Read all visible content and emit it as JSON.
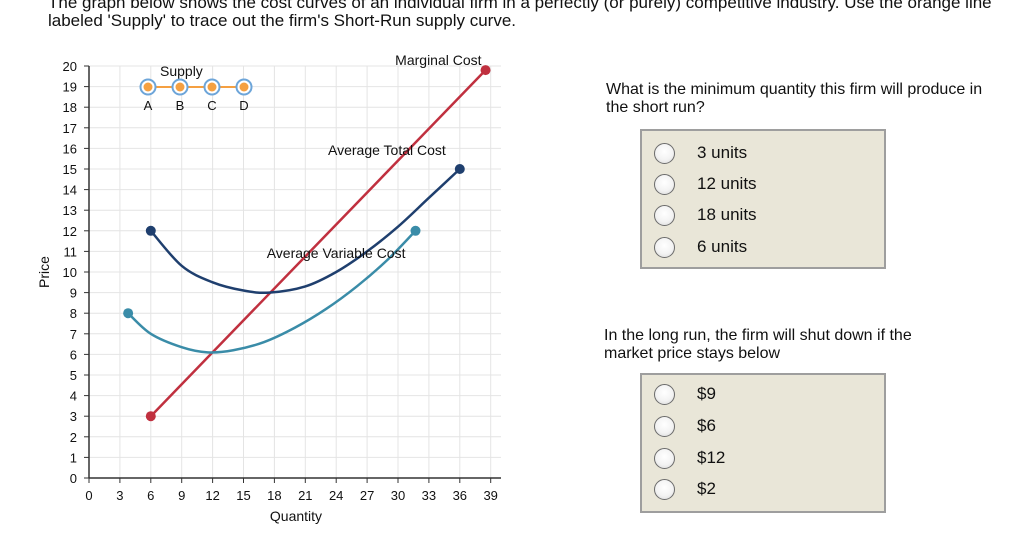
{
  "instructions": "The graph below shows the cost curves of an individual firm in a perfectly (or purely) competitive industry. Use the orange line labeled 'Supply' to trace out the firm's Short-Run supply curve.",
  "chart_data": {
    "type": "line",
    "xlabel": "Quantity",
    "ylabel": "Price",
    "xlim": [
      0,
      40
    ],
    "ylim": [
      0,
      20
    ],
    "x_ticks": [
      0,
      3,
      6,
      9,
      12,
      15,
      18,
      21,
      24,
      27,
      30,
      33,
      36,
      39
    ],
    "y_ticks": [
      0,
      1,
      2,
      3,
      4,
      5,
      6,
      7,
      8,
      9,
      10,
      11,
      12,
      13,
      14,
      15,
      16,
      17,
      18,
      19,
      20
    ],
    "grid": true,
    "series": [
      {
        "name": "Marginal Cost",
        "color": "#c0303f",
        "points": [
          [
            6,
            3
          ],
          [
            38.5,
            19.8
          ]
        ]
      },
      {
        "name": "Average Total Cost",
        "color": "#1f3f6e",
        "points": [
          [
            6,
            12
          ],
          [
            9,
            10.3
          ],
          [
            12,
            9.5
          ],
          [
            15,
            9.1
          ],
          [
            17.5,
            9.0
          ],
          [
            21,
            9.3
          ],
          [
            24,
            10.0
          ],
          [
            27,
            11.0
          ],
          [
            30,
            12.2
          ],
          [
            33,
            13.6
          ],
          [
            36,
            15.0
          ]
        ]
      },
      {
        "name": "Average Variable Cost",
        "color": "#3a8ca8",
        "points": [
          [
            3.8,
            8
          ],
          [
            6,
            7.0
          ],
          [
            9,
            6.35
          ],
          [
            11.5,
            6.1
          ],
          [
            14,
            6.2
          ],
          [
            17,
            6.6
          ],
          [
            20,
            7.3
          ],
          [
            23,
            8.2
          ],
          [
            26,
            9.3
          ],
          [
            29,
            10.6
          ],
          [
            31.7,
            12
          ]
        ]
      }
    ],
    "supply_tool": {
      "label": "Supply",
      "color": "#f5a041",
      "points": [
        "A",
        "B",
        "C",
        "D"
      ]
    }
  },
  "question1": {
    "text": "What is the minimum quantity this firm will produce in the short run?",
    "options": [
      "3 units",
      "12 units",
      "18 units",
      "6 units"
    ]
  },
  "question2": {
    "text": "In the long run, the firm will shut down if the market price stays below",
    "options": [
      "$9",
      "$6",
      "$12",
      "$2"
    ]
  }
}
